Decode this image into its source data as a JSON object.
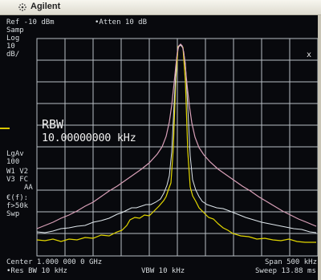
{
  "header": {
    "brand": "Agilent"
  },
  "readout": {
    "ref_level": "Ref -10 dBm",
    "atten": "•Atten 10 dB",
    "marker_x": "x"
  },
  "side_panel": {
    "samp": "Samp",
    "log": "Log",
    "scale_value": "10",
    "scale_unit": "dB/",
    "lgav": "LgAv",
    "avg_count": "100",
    "w1_v2": "W1  V2",
    "v3_fc": "V3  FC",
    "aa": "AA",
    "ef": "€(f):",
    "fsm": "f>50k",
    "swp": "Swp"
  },
  "annotation": {
    "rbw_label": "RBW",
    "rbw_value": "10.00000000 kHz"
  },
  "footer": {
    "center": "Center 1.000 000 0 GHz",
    "span": "Span 500 kHz",
    "res_bw": "•Res BW 10 kHz",
    "vbw": "VBW 10 kHz",
    "sweep": "Sweep 13.88 ms"
  },
  "colors": {
    "trace_pink": "#d9a0b8",
    "trace_white": "#dfe7ec",
    "trace_yellow": "#e2d600",
    "grid": "#b9bfc5"
  }
}
